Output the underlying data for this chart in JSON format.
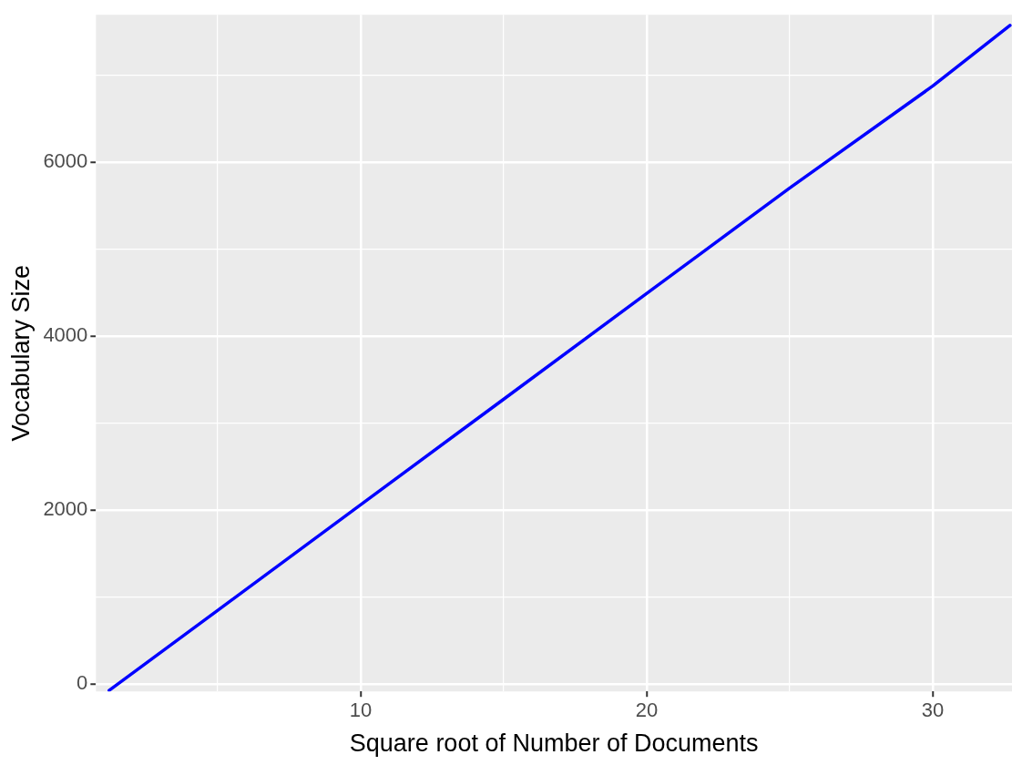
{
  "chart_data": {
    "type": "line",
    "xlabel": "Square root of Number of Documents",
    "ylabel": "Vocabulary Size",
    "x": [
      1.2,
      5,
      10,
      15,
      20,
      25,
      30,
      32.7
    ],
    "series": [
      {
        "color": "#0000ff",
        "values": [
          -76,
          847,
          2062,
          3277,
          4494,
          5707,
          6880,
          7578
        ]
      }
    ],
    "xlim": [
      0.74,
      32.77
    ],
    "ylim": [
      -87,
      7700
    ],
    "xticks": [
      {
        "value": 5,
        "label": null
      },
      10,
      {
        "value": 15,
        "label": null
      },
      20,
      {
        "value": 25,
        "label": null
      },
      30
    ],
    "yticks": [
      0,
      {
        "value": 1000,
        "label": null
      },
      2000,
      {
        "value": 3000,
        "label": null
      },
      4000,
      {
        "value": 5000,
        "label": null
      },
      6000,
      {
        "value": 7000,
        "label": null
      }
    ],
    "grid": true,
    "legend": false,
    "marker": "none",
    "line_style": "solid"
  }
}
